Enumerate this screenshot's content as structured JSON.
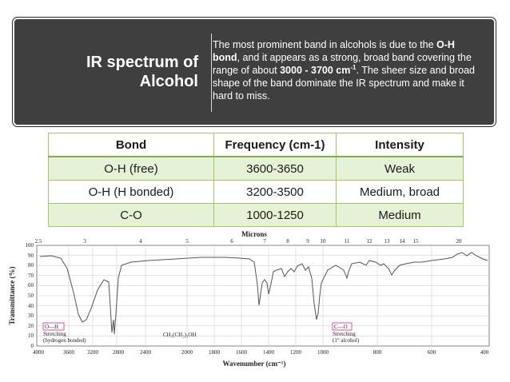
{
  "banner": {
    "title_line1": "IR spectrum of",
    "title_line2": "Alcohol",
    "text_1": "The most prominent band in alcohols is due to the ",
    "bold_1": "O-H bond",
    "text_2": ", and it appears as a strong, broad band covering the range of about ",
    "bold_2": "3000 - 3700 cm",
    "bold_2_sup": "-1",
    "text_3": ". The sheer size and broad shape of the band dominate the IR spectrum and make it hard to miss."
  },
  "table": {
    "headers": [
      "Bond",
      "Frequency (cm-1)",
      "Intensity"
    ],
    "rows": [
      [
        "O-H (free)",
        "3600-3650",
        "Weak"
      ],
      [
        "O-H (H bonded)",
        "3200-3500",
        "Medium, broad"
      ],
      [
        "C-O",
        "1000-1250",
        "Medium"
      ]
    ]
  },
  "spectrum": {
    "top_label": "Microns",
    "micron_ticks": [
      "2.5",
      "3",
      "4",
      "5",
      "6",
      "7",
      "8",
      "9",
      "10",
      "11",
      "12",
      "13",
      "14",
      "15",
      "20"
    ],
    "y_label": "Transmittance (%)",
    "y_ticks": [
      "100",
      "90",
      "80",
      "70",
      "60",
      "50",
      "40",
      "30",
      "20",
      "10",
      "0"
    ],
    "x_label": "Wavenumber (cm⁻¹)",
    "x_ticks": [
      "4000",
      "3600",
      "3200",
      "2800",
      "2400",
      "2000",
      "1800",
      "1600",
      "1400",
      "1200",
      "1000",
      "800",
      "600",
      "400"
    ],
    "compound": "CH₃(CH₂)₃OH",
    "annotation_oh_box": "O—H",
    "annotation_oh_line1": "Stretching",
    "annotation_oh_line2": "(hydrogen bonded)",
    "annotation_co_box": "C—O",
    "annotation_co_line1": "Stretching",
    "annotation_co_line2": "(1° alcohol)",
    "accent_color": "#e91e8c",
    "curve_color": "#555555"
  }
}
